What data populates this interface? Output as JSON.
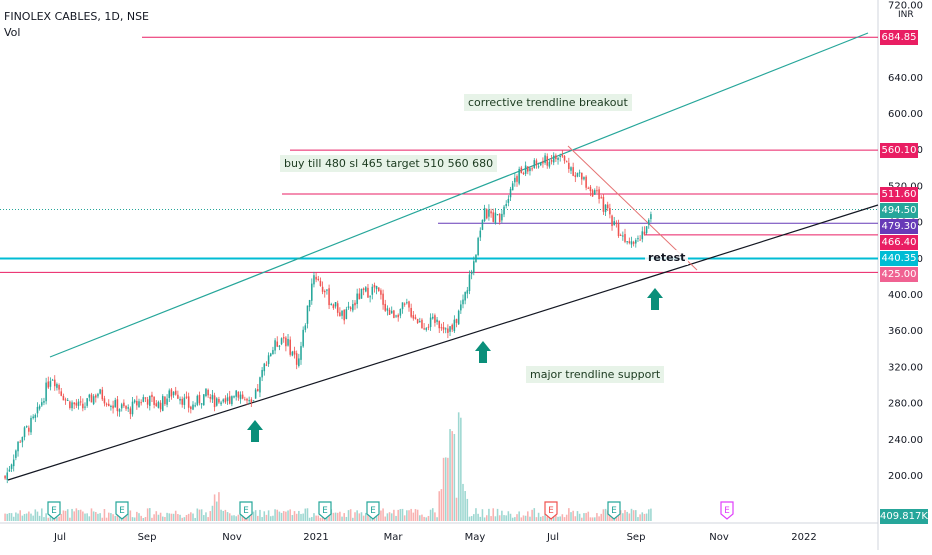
{
  "header": {
    "symbol_line": "FINOLEX CABLES, 1D, NSE",
    "indicator": "Vol",
    "currency": "INR"
  },
  "annotations": {
    "breakout_note": "corrective trendline breakout",
    "trade_note": "buy till 480 sl 465 target 510 560 680",
    "support_note": "major trendline support",
    "retest_label": "retest"
  },
  "price_tags": [
    {
      "label": "684.85",
      "value": 684.85,
      "color": "#e91e63"
    },
    {
      "label": "560.10",
      "value": 560.1,
      "color": "#e91e63"
    },
    {
      "label": "511.60",
      "value": 511.6,
      "color": "#e91e63"
    },
    {
      "label": "494.50",
      "value": 494.5,
      "color": "#26a69a"
    },
    {
      "label": "479.30",
      "value": 479.3,
      "color": "#673ab7"
    },
    {
      "label": "466.40",
      "value": 466.4,
      "color": "#e91e63"
    },
    {
      "label": "440.35",
      "value": 440.35,
      "color": "#00bcd4"
    },
    {
      "label": "425.00",
      "value": 425.0,
      "color": "#f06292"
    }
  ],
  "volume_tag": "409.817K",
  "colors": {
    "up": "#26a69a",
    "down": "#ef5350",
    "channel": "#26a69a",
    "support": "#131722",
    "resistance": "#e91e63",
    "entry": "#673ab7",
    "zone": "#00bcd4",
    "arrow": "#0a8f7a"
  },
  "chart_data": {
    "type": "candlestick",
    "y_axis": {
      "ticks": [
        "720.00",
        "640.00",
        "600.00",
        "560.00",
        "520.00",
        "480.00",
        "440.00",
        "400.00",
        "360.00",
        "320.00",
        "280.00",
        "240.00",
        "200.00"
      ],
      "range": [
        180,
        730
      ]
    },
    "x_axis": {
      "ticks": [
        "Jul",
        "Sep",
        "Nov",
        "2021",
        "Mar",
        "May",
        "Jul",
        "Sep",
        "Nov",
        "2022"
      ]
    },
    "horizontal_levels": [
      684.85,
      560.1,
      511.6,
      494.5,
      479.3,
      466.4,
      440.35,
      425.0
    ],
    "trendlines": [
      {
        "name": "channel-top",
        "from": [
          "Jul",
          325
        ],
        "to": [
          "2022",
          700
        ]
      },
      {
        "name": "major-support",
        "from": [
          "Jun",
          190
        ],
        "to": [
          "2022",
          480
        ]
      },
      {
        "name": "corrective-trendline",
        "from": [
          "Jul",
          565
        ],
        "to": [
          "Sep",
          450
        ]
      }
    ],
    "earnings_markers": [
      "Jul",
      "Aug",
      "Nov",
      "Feb",
      "May",
      "Jul",
      "Sep",
      "Nov"
    ],
    "price_path": [
      [
        200,
        195
      ],
      [
        225,
        260
      ],
      [
        250,
        280
      ],
      [
        300,
        325
      ],
      [
        275,
        290
      ],
      [
        265,
        285
      ],
      [
        285,
        300
      ],
      [
        272,
        285
      ],
      [
        265,
        280
      ],
      [
        283,
        290
      ],
      [
        272,
        285
      ],
      [
        290,
        300
      ],
      [
        270,
        280
      ],
      [
        285,
        295
      ],
      [
        270,
        280
      ],
      [
        290,
        300
      ],
      [
        280,
        270
      ],
      [
        330,
        335
      ],
      [
        350,
        360
      ],
      [
        320,
        330
      ],
      [
        430,
        420
      ],
      [
        390,
        400
      ],
      [
        370,
        380
      ],
      [
        395,
        405
      ],
      [
        415,
        400
      ],
      [
        375,
        380
      ],
      [
        390,
        385
      ],
      [
        370,
        365
      ],
      [
        380,
        360
      ],
      [
        360,
        362
      ],
      [
        400,
        420
      ],
      [
        480,
        500
      ],
      [
        500,
        470
      ],
      [
        520,
        540
      ],
      [
        550,
        530
      ],
      [
        540,
        555
      ],
      [
        560,
        545
      ],
      [
        540,
        530
      ],
      [
        525,
        510
      ],
      [
        505,
        480
      ],
      [
        470,
        460
      ],
      [
        455,
        470
      ],
      [
        480,
        495
      ]
    ]
  }
}
